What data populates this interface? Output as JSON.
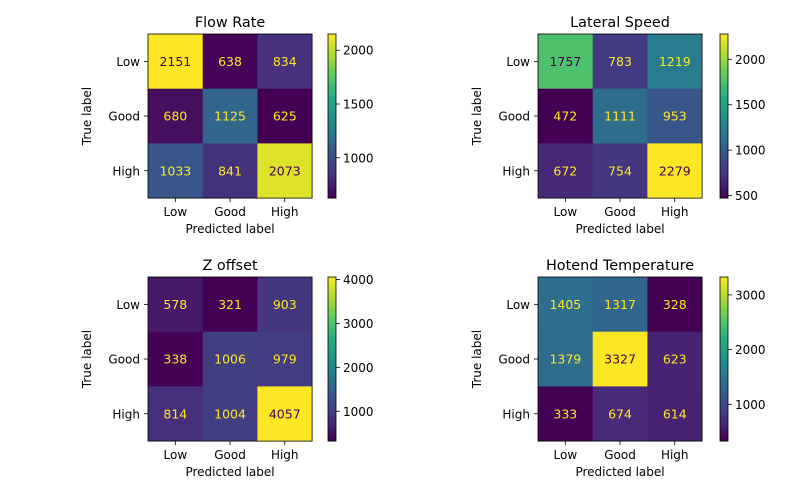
{
  "chart_data": [
    {
      "type": "heatmap",
      "title": "Flow Rate",
      "xlabel": "Predicted label",
      "ylabel": "True label",
      "x_categories": [
        "Low",
        "Good",
        "High"
      ],
      "y_categories": [
        "Low",
        "Good",
        "High"
      ],
      "values": [
        [
          2151,
          638,
          834
        ],
        [
          680,
          1125,
          625
        ],
        [
          1033,
          841,
          2073
        ]
      ],
      "colormap": "viridis",
      "colorbar": {
        "range": [
          625,
          2151
        ],
        "ticks": [
          1000,
          1500,
          2000
        ]
      }
    },
    {
      "type": "heatmap",
      "title": "Lateral Speed",
      "xlabel": "Predicted label",
      "ylabel": "True label",
      "x_categories": [
        "Low",
        "Good",
        "High"
      ],
      "y_categories": [
        "Low",
        "Good",
        "High"
      ],
      "values": [
        [
          1757,
          783,
          1219
        ],
        [
          472,
          1111,
          953
        ],
        [
          672,
          754,
          2279
        ]
      ],
      "colormap": "viridis",
      "colorbar": {
        "range": [
          472,
          2279
        ],
        "ticks": [
          500,
          1000,
          1500,
          2000
        ]
      }
    },
    {
      "type": "heatmap",
      "title": "Z offset",
      "xlabel": "Predicted label",
      "ylabel": "True label",
      "x_categories": [
        "Low",
        "Good",
        "High"
      ],
      "y_categories": [
        "Low",
        "Good",
        "High"
      ],
      "values": [
        [
          578,
          321,
          903
        ],
        [
          338,
          1006,
          979
        ],
        [
          814,
          1004,
          4057
        ]
      ],
      "colormap": "viridis",
      "colorbar": {
        "range": [
          321,
          4057
        ],
        "ticks": [
          1000,
          2000,
          3000,
          4000
        ]
      }
    },
    {
      "type": "heatmap",
      "title": "Hotend Temperature",
      "xlabel": "Predicted label",
      "ylabel": "True label",
      "x_categories": [
        "Low",
        "Good",
        "High"
      ],
      "y_categories": [
        "Low",
        "Good",
        "High"
      ],
      "values": [
        [
          1405,
          1317,
          328
        ],
        [
          1379,
          3327,
          623
        ],
        [
          333,
          674,
          614
        ]
      ],
      "colormap": "viridis",
      "colorbar": {
        "range": [
          328,
          3327
        ],
        "ticks": [
          1000,
          2000,
          3000
        ]
      }
    }
  ]
}
